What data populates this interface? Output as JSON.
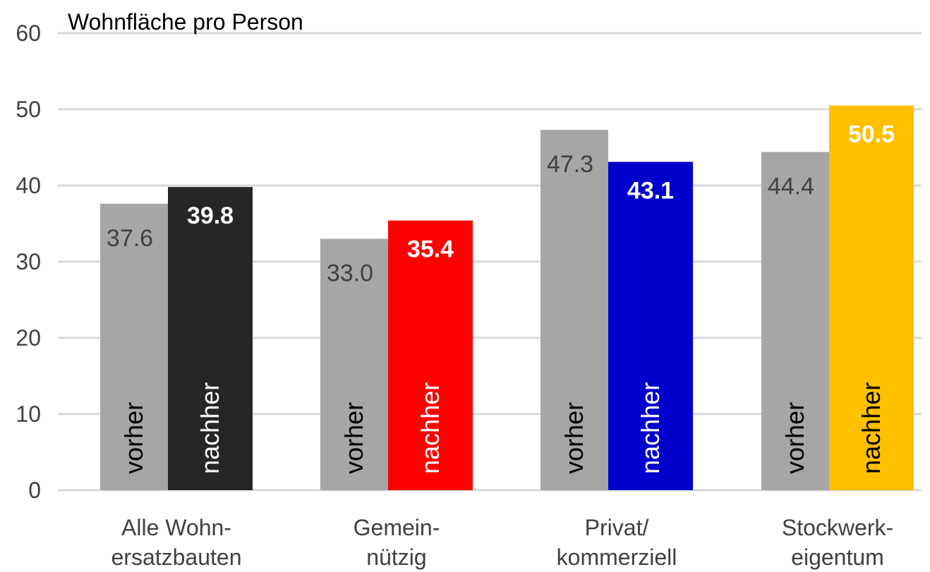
{
  "chart_data": {
    "type": "bar",
    "title": "Wohnfläche pro Person",
    "categories": [
      [
        "Alle Wohn-",
        "ersatzbauten"
      ],
      [
        "Gemein-",
        "nützig"
      ],
      [
        "Privat/",
        "kommerziell"
      ],
      [
        "Stockwerk-",
        "eigentum"
      ]
    ],
    "series": [
      {
        "name": "vorher",
        "values": [
          37.6,
          33.0,
          47.3,
          44.4
        ],
        "value_labels": [
          "37.6",
          "33.0",
          "47.3",
          "44.4"
        ],
        "colors": [
          "#A6A6A6",
          "#A6A6A6",
          "#A6A6A6",
          "#A6A6A6"
        ],
        "label_color": "#000000",
        "value_label_color": "#404040"
      },
      {
        "name": "nachher",
        "values": [
          39.8,
          35.4,
          43.1,
          50.5
        ],
        "value_labels": [
          "39.8",
          "35.4",
          "43.1",
          "50.5"
        ],
        "colors": [
          "#262626",
          "#FF0000",
          "#0000CC",
          "#FFC000"
        ],
        "label_colors": [
          "#FFFFFF",
          "#FFFFFF",
          "#FFFFFF",
          "#000000"
        ],
        "value_label_color": "#FFFFFF"
      }
    ],
    "yticks": [
      "0",
      "10",
      "20",
      "30",
      "40",
      "50",
      "60"
    ],
    "ylim": [
      0,
      60
    ],
    "grid": true,
    "gridline_color": "#D9D9D9"
  }
}
